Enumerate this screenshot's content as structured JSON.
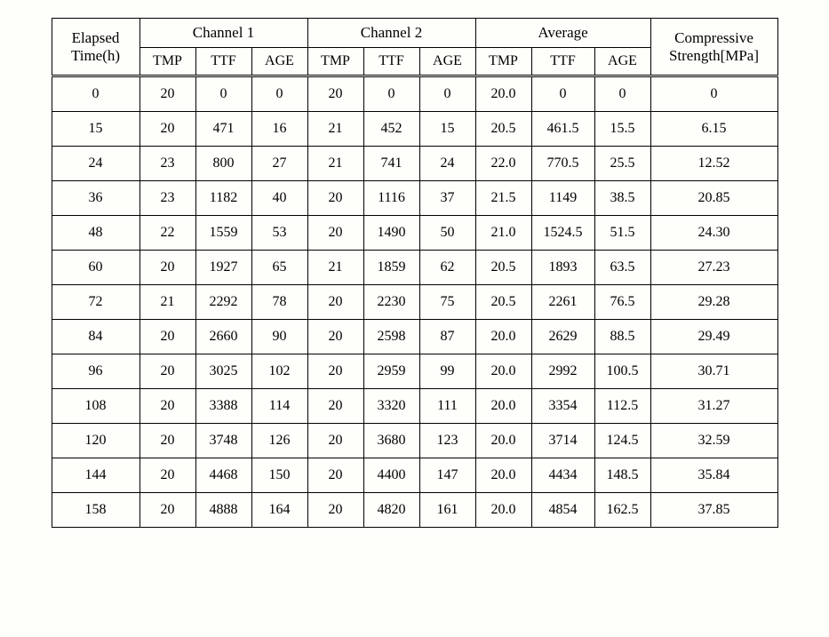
{
  "table": {
    "headers": {
      "elapsed": "Elapsed Time(h)",
      "channel1": "Channel 1",
      "channel2": "Channel 2",
      "average": "Average",
      "cs": "Compressive Strength[MPa]",
      "sub": {
        "tmp": "TMP",
        "ttf": "TTF",
        "age": "AGE"
      }
    },
    "rows": [
      {
        "time": "0",
        "c1": {
          "tmp": "20",
          "ttf": "0",
          "age": "0"
        },
        "c2": {
          "tmp": "20",
          "ttf": "0",
          "age": "0"
        },
        "avg": {
          "tmp": "20.0",
          "ttf": "0",
          "age": "0"
        },
        "cs": "0"
      },
      {
        "time": "15",
        "c1": {
          "tmp": "20",
          "ttf": "471",
          "age": "16"
        },
        "c2": {
          "tmp": "21",
          "ttf": "452",
          "age": "15"
        },
        "avg": {
          "tmp": "20.5",
          "ttf": "461.5",
          "age": "15.5"
        },
        "cs": "6.15"
      },
      {
        "time": "24",
        "c1": {
          "tmp": "23",
          "ttf": "800",
          "age": "27"
        },
        "c2": {
          "tmp": "21",
          "ttf": "741",
          "age": "24"
        },
        "avg": {
          "tmp": "22.0",
          "ttf": "770.5",
          "age": "25.5"
        },
        "cs": "12.52"
      },
      {
        "time": "36",
        "c1": {
          "tmp": "23",
          "ttf": "1182",
          "age": "40"
        },
        "c2": {
          "tmp": "20",
          "ttf": "1116",
          "age": "37"
        },
        "avg": {
          "tmp": "21.5",
          "ttf": "1149",
          "age": "38.5"
        },
        "cs": "20.85"
      },
      {
        "time": "48",
        "c1": {
          "tmp": "22",
          "ttf": "1559",
          "age": "53"
        },
        "c2": {
          "tmp": "20",
          "ttf": "1490",
          "age": "50"
        },
        "avg": {
          "tmp": "21.0",
          "ttf": "1524.5",
          "age": "51.5"
        },
        "cs": "24.30"
      },
      {
        "time": "60",
        "c1": {
          "tmp": "20",
          "ttf": "1927",
          "age": "65"
        },
        "c2": {
          "tmp": "21",
          "ttf": "1859",
          "age": "62"
        },
        "avg": {
          "tmp": "20.5",
          "ttf": "1893",
          "age": "63.5"
        },
        "cs": "27.23"
      },
      {
        "time": "72",
        "c1": {
          "tmp": "21",
          "ttf": "2292",
          "age": "78"
        },
        "c2": {
          "tmp": "20",
          "ttf": "2230",
          "age": "75"
        },
        "avg": {
          "tmp": "20.5",
          "ttf": "2261",
          "age": "76.5"
        },
        "cs": "29.28"
      },
      {
        "time": "84",
        "c1": {
          "tmp": "20",
          "ttf": "2660",
          "age": "90"
        },
        "c2": {
          "tmp": "20",
          "ttf": "2598",
          "age": "87"
        },
        "avg": {
          "tmp": "20.0",
          "ttf": "2629",
          "age": "88.5"
        },
        "cs": "29.49"
      },
      {
        "time": "96",
        "c1": {
          "tmp": "20",
          "ttf": "3025",
          "age": "102"
        },
        "c2": {
          "tmp": "20",
          "ttf": "2959",
          "age": "99"
        },
        "avg": {
          "tmp": "20.0",
          "ttf": "2992",
          "age": "100.5"
        },
        "cs": "30.71"
      },
      {
        "time": "108",
        "c1": {
          "tmp": "20",
          "ttf": "3388",
          "age": "114"
        },
        "c2": {
          "tmp": "20",
          "ttf": "3320",
          "age": "111"
        },
        "avg": {
          "tmp": "20.0",
          "ttf": "3354",
          "age": "112.5"
        },
        "cs": "31.27"
      },
      {
        "time": "120",
        "c1": {
          "tmp": "20",
          "ttf": "3748",
          "age": "126"
        },
        "c2": {
          "tmp": "20",
          "ttf": "3680",
          "age": "123"
        },
        "avg": {
          "tmp": "20.0",
          "ttf": "3714",
          "age": "124.5"
        },
        "cs": "32.59"
      },
      {
        "time": "144",
        "c1": {
          "tmp": "20",
          "ttf": "4468",
          "age": "150"
        },
        "c2": {
          "tmp": "20",
          "ttf": "4400",
          "age": "147"
        },
        "avg": {
          "tmp": "20.0",
          "ttf": "4434",
          "age": "148.5"
        },
        "cs": "35.84"
      },
      {
        "time": "158",
        "c1": {
          "tmp": "20",
          "ttf": "4888",
          "age": "164"
        },
        "c2": {
          "tmp": "20",
          "ttf": "4820",
          "age": "161"
        },
        "avg": {
          "tmp": "20.0",
          "ttf": "4854",
          "age": "162.5"
        },
        "cs": "37.85"
      }
    ]
  }
}
